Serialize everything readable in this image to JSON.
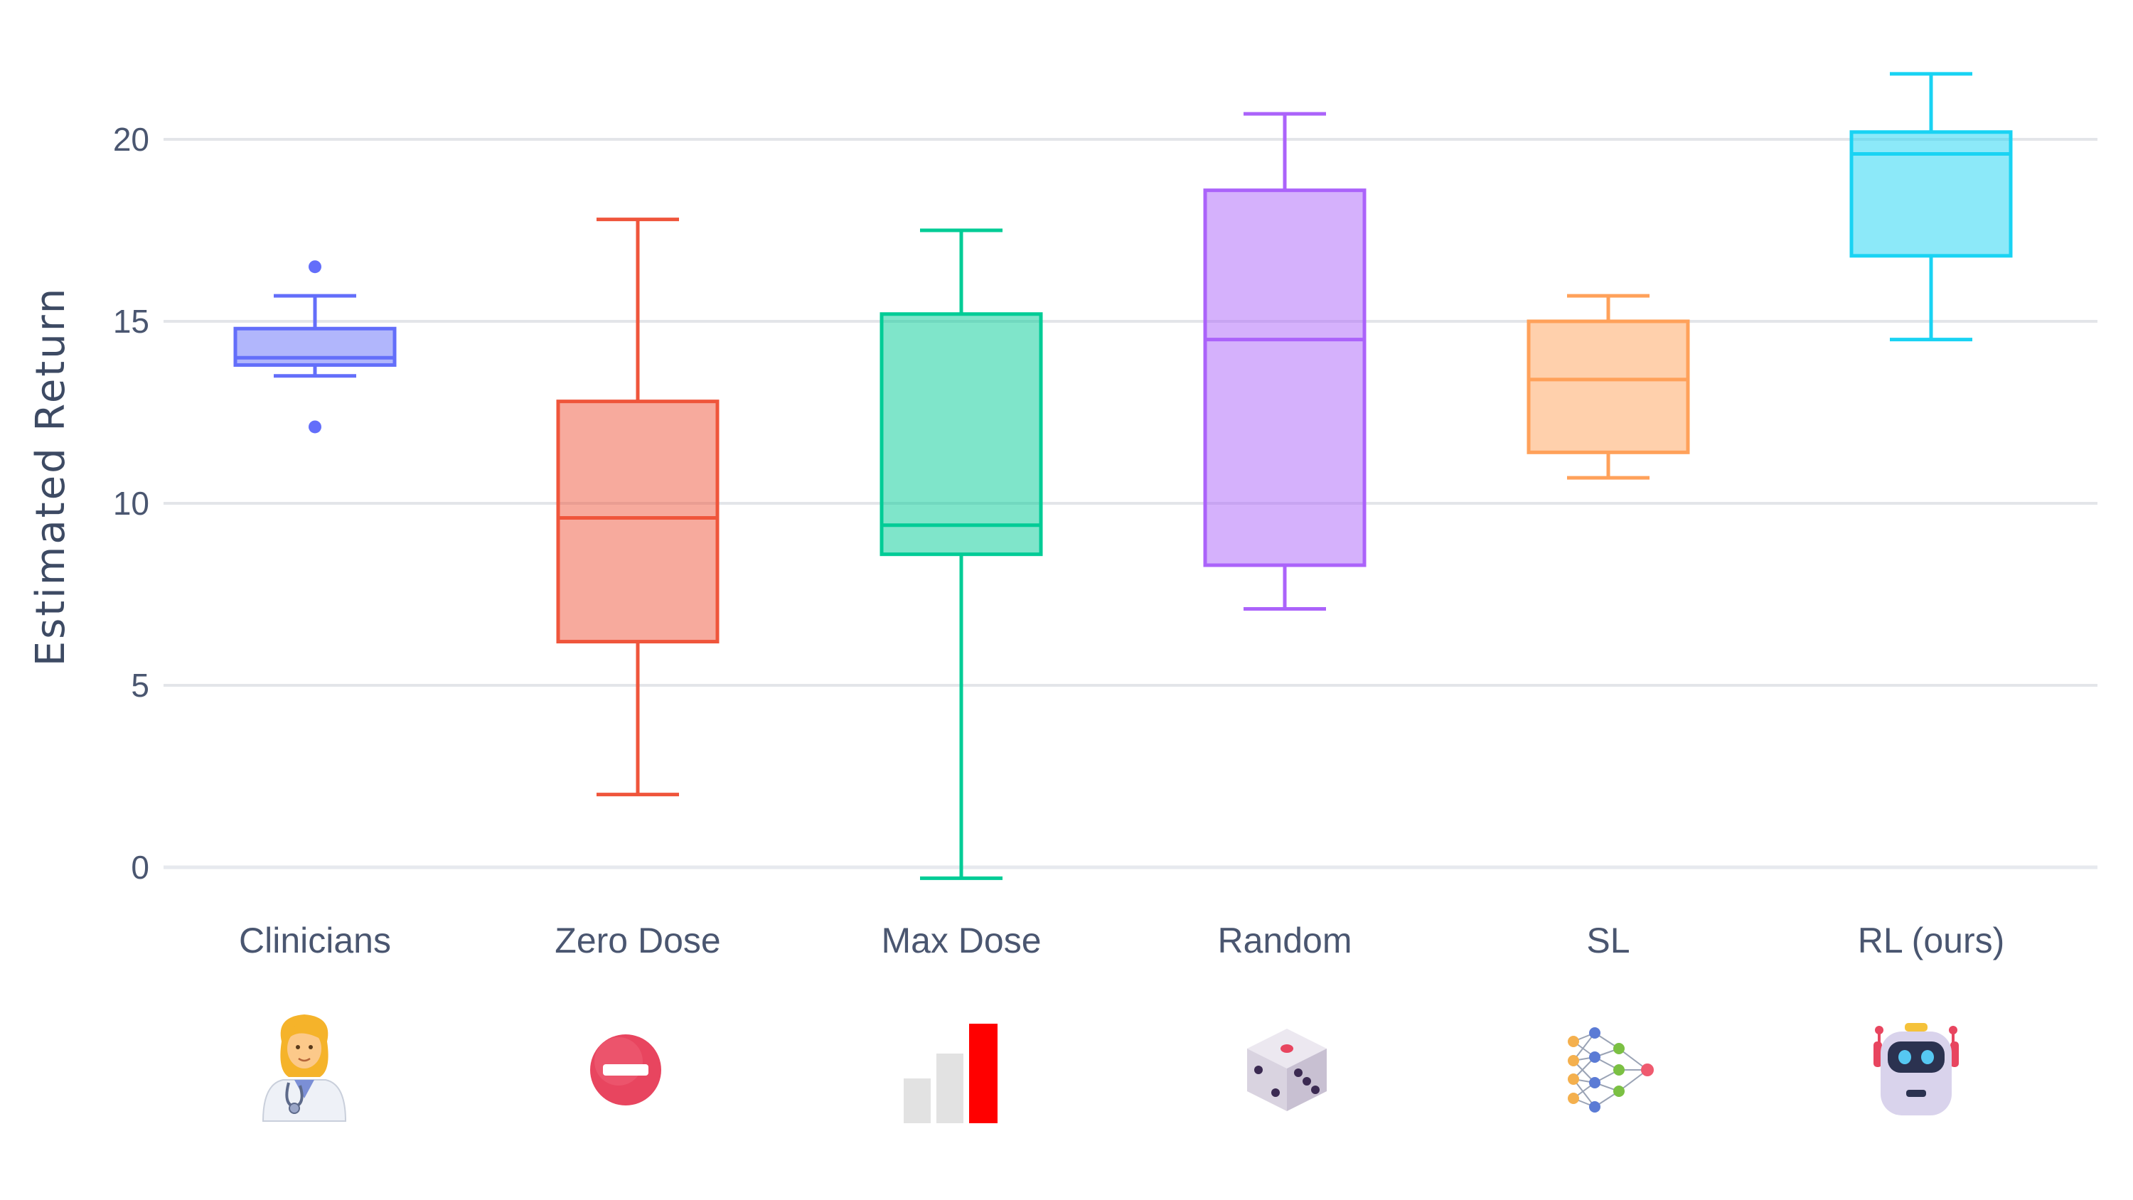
{
  "chart_data": {
    "type": "box",
    "title": "",
    "xlabel": "",
    "ylabel": "Estimated Return",
    "ylim": [
      -1.2,
      23.5
    ],
    "yticks": [
      0,
      5,
      10,
      15,
      20
    ],
    "grid": true,
    "categories": [
      "Clinicians",
      "Zero Dose",
      "Max Dose",
      "Random",
      "SL",
      "RL (ours)"
    ],
    "boxes": [
      {
        "category": "Clinicians",
        "min": 13.5,
        "q1": 13.8,
        "median": 14.0,
        "q3": 14.8,
        "max": 15.7,
        "outliers": [
          16.5,
          12.1
        ],
        "color": "#636efa"
      },
      {
        "category": "Zero Dose",
        "min": 2.0,
        "q1": 6.2,
        "median": 9.6,
        "q3": 12.8,
        "max": 17.8,
        "outliers": [],
        "color": "#ef553b"
      },
      {
        "category": "Max Dose",
        "min": -0.3,
        "q1": 8.6,
        "median": 9.4,
        "q3": 15.2,
        "max": 17.5,
        "outliers": [],
        "color": "#00cc96"
      },
      {
        "category": "Random",
        "min": 7.1,
        "q1": 8.3,
        "median": 14.5,
        "q3": 18.6,
        "max": 20.7,
        "outliers": [],
        "color": "#ab63fa"
      },
      {
        "category": "SL",
        "min": 10.7,
        "q1": 11.4,
        "median": 13.4,
        "q3": 15.0,
        "max": 15.7,
        "outliers": [],
        "color": "#ffa15a"
      },
      {
        "category": "RL (ours)",
        "min": 14.5,
        "q1": 16.8,
        "median": 19.6,
        "q3": 20.2,
        "max": 21.8,
        "outliers": [],
        "color": "#19d3f3"
      }
    ]
  },
  "icons": [
    {
      "category": "Clinicians",
      "name": "clinician-doctor-icon"
    },
    {
      "category": "Zero Dose",
      "name": "no-entry-icon"
    },
    {
      "category": "Max Dose",
      "name": "max-bars-icon"
    },
    {
      "category": "Random",
      "name": "dice-icon"
    },
    {
      "category": "SL",
      "name": "neural-network-icon"
    },
    {
      "category": "RL (ours)",
      "name": "robot-icon"
    }
  ]
}
